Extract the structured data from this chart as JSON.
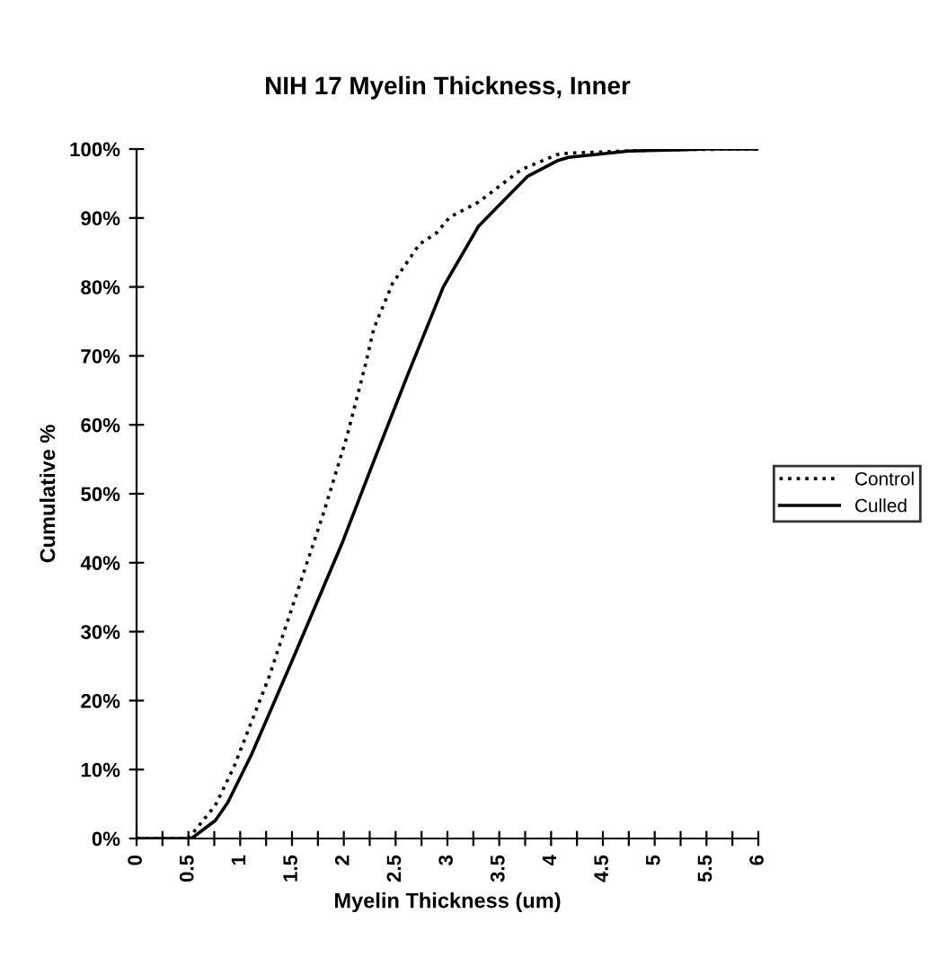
{
  "chart_data": {
    "type": "line",
    "title": "NIH 17 Myelin Thickness, Inner",
    "xlabel": "Myelin Thickness (um)",
    "ylabel": "Cumulative %",
    "xlim": [
      0,
      6
    ],
    "xticks": [
      0,
      {
        "value": 0.25,
        "label": null
      },
      0.5,
      {
        "value": 0.75,
        "label": null
      },
      1,
      {
        "value": 1.25,
        "label": null
      },
      1.5,
      {
        "value": 1.75,
        "label": null
      },
      2,
      {
        "value": 2.25,
        "label": null
      },
      2.5,
      {
        "value": 2.75,
        "label": null
      },
      3,
      {
        "value": 3.25,
        "label": null
      },
      3.5,
      {
        "value": 3.75,
        "label": null
      },
      4,
      {
        "value": 4.25,
        "label": null
      },
      4.5,
      {
        "value": 4.75,
        "label": null
      },
      5,
      {
        "value": 5.25,
        "label": null
      },
      5.5,
      {
        "value": 5.75,
        "label": null
      },
      6
    ],
    "ylim": [
      0,
      100
    ],
    "yticks": [
      {
        "value": 0,
        "label": "0%"
      },
      {
        "value": 10,
        "label": "10%"
      },
      {
        "value": 20,
        "label": "20%"
      },
      {
        "value": 30,
        "label": "30%"
      },
      {
        "value": 40,
        "label": "40%"
      },
      {
        "value": 50,
        "label": "50%"
      },
      {
        "value": 60,
        "label": "60%"
      },
      {
        "value": 70,
        "label": "70%"
      },
      {
        "value": 80,
        "label": "80%"
      },
      {
        "value": 90,
        "label": "90%"
      },
      {
        "value": 100,
        "label": "100%"
      }
    ],
    "grid": false,
    "legend": "right",
    "marker": "none",
    "series": [
      {
        "name": "Control",
        "color": "#000000",
        "line_style": "dotted",
        "x": [
          0,
          0.5,
          0.76,
          0.94,
          1.28,
          1.51,
          1.8,
          2.03,
          2.21,
          2.29,
          2.47,
          2.73,
          2.9,
          3.02,
          3.3,
          3.71,
          4.06,
          4.17,
          5.04,
          6
        ],
        "values": [
          0,
          0,
          4.8,
          10.4,
          23.5,
          33.9,
          47,
          58.3,
          68.8,
          74,
          80.5,
          86.2,
          87.9,
          90.1,
          92.3,
          97,
          99.2,
          99.4,
          99.9,
          100
        ]
      },
      {
        "name": "Culled",
        "color": "#000000",
        "line_style": "solid",
        "x": [
          0,
          0.53,
          0.76,
          0.88,
          1.11,
          1.51,
          1.98,
          2.27,
          2.61,
          2.96,
          3.3,
          3.77,
          4.06,
          4.17,
          4.75,
          5.5,
          6
        ],
        "values": [
          0,
          0,
          2.6,
          5.2,
          12.2,
          26.1,
          42.7,
          54,
          67,
          80,
          88.8,
          96,
          98.3,
          98.8,
          99.7,
          100,
          100
        ]
      }
    ]
  }
}
